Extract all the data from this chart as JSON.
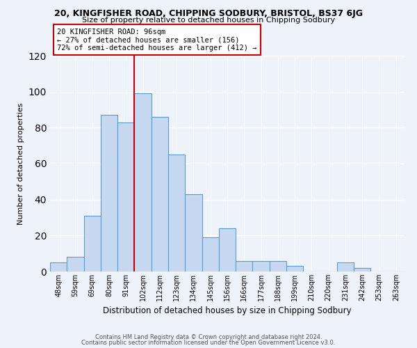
{
  "title1": "20, KINGFISHER ROAD, CHIPPING SODBURY, BRISTOL, BS37 6JG",
  "title2": "Size of property relative to detached houses in Chipping Sodbury",
  "xlabel": "Distribution of detached houses by size in Chipping Sodbury",
  "ylabel": "Number of detached properties",
  "footer1": "Contains HM Land Registry data © Crown copyright and database right 2024.",
  "footer2": "Contains public sector information licensed under the Open Government Licence v3.0.",
  "bin_labels": [
    "48sqm",
    "59sqm",
    "69sqm",
    "80sqm",
    "91sqm",
    "102sqm",
    "112sqm",
    "123sqm",
    "134sqm",
    "145sqm",
    "156sqm",
    "166sqm",
    "177sqm",
    "188sqm",
    "199sqm",
    "210sqm",
    "220sqm",
    "231sqm",
    "242sqm",
    "253sqm",
    "263sqm"
  ],
  "bin_values": [
    5,
    8,
    31,
    87,
    83,
    99,
    86,
    65,
    43,
    19,
    24,
    6,
    6,
    6,
    3,
    0,
    0,
    5,
    2,
    0,
    0
  ],
  "bar_color": "#c5d8f0",
  "bar_edge_color": "#5b9bd5",
  "vline_x_index": 4.5,
  "vline_color": "#cc0000",
  "annotation_title": "20 KINGFISHER ROAD: 96sqm",
  "annotation_line1": "← 27% of detached houses are smaller (156)",
  "annotation_line2": "72% of semi-detached houses are larger (412) →",
  "annotation_box_color": "#ffffff",
  "annotation_box_edge": "#cc0000",
  "ylim": [
    0,
    120
  ],
  "yticks": [
    0,
    20,
    40,
    60,
    80,
    100,
    120
  ],
  "background_color": "#eef2f9",
  "plot_background": "#eef2f9"
}
